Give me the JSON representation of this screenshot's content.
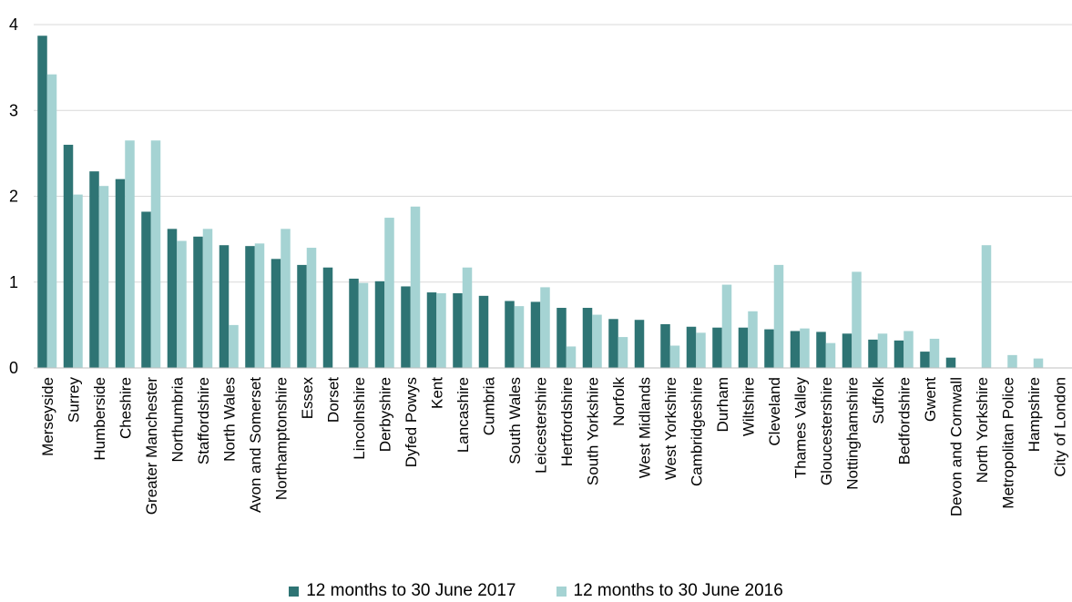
{
  "chart_data": {
    "type": "bar",
    "categories": [
      "Merseyside",
      "Surrey",
      "Humberside",
      "Cheshire",
      "Greater Manchester",
      "Northumbria",
      "Staffordshire",
      "North Wales",
      "Avon and Somerset",
      "Northamptonshire",
      "Essex",
      "Dorset",
      "Lincolnshire",
      "Derbyshire",
      "Dyfed Powys",
      "Kent",
      "Lancashire",
      "Cumbria",
      "South Wales",
      "Leicestershire",
      "Hertfordshire",
      "South Yorkshire",
      "Norfolk",
      "West Midlands",
      "West Yorkshire",
      "Cambridgeshire",
      "Durham",
      "Wiltshire",
      "Cleveland",
      "Thames Valley",
      "Gloucestershire",
      "Nottinghamshire",
      "Suffolk",
      "Bedfordshire",
      "Gwent",
      "Devon and Cornwall",
      "North Yorkshire",
      "Metropolitan Police",
      "Hampshire",
      "City of London"
    ],
    "series": [
      {
        "name": "12 months to 30 June 2017",
        "color": "#2e7474",
        "values": [
          3.87,
          2.6,
          2.29,
          2.2,
          1.82,
          1.62,
          1.53,
          1.43,
          1.42,
          1.27,
          1.2,
          1.17,
          1.04,
          1.01,
          0.95,
          0.88,
          0.87,
          0.84,
          0.78,
          0.77,
          0.7,
          0.7,
          0.57,
          0.56,
          0.51,
          0.48,
          0.47,
          0.47,
          0.45,
          0.43,
          0.42,
          0.4,
          0.33,
          0.32,
          0.19,
          0.12,
          0,
          0,
          0,
          0
        ]
      },
      {
        "name": "12 months to 30 June 2016",
        "color": "#a5d3d3",
        "values": [
          3.42,
          2.02,
          2.12,
          2.65,
          2.65,
          1.48,
          1.62,
          0.5,
          1.45,
          1.62,
          1.4,
          0,
          0.99,
          1.75,
          1.88,
          0.87,
          1.17,
          0,
          0.72,
          0.94,
          0.25,
          0.62,
          0.36,
          0,
          0.26,
          0.41,
          0.97,
          0.66,
          1.2,
          0.46,
          0.29,
          1.12,
          0.4,
          0.43,
          0.34,
          0,
          1.43,
          0.15,
          0.11,
          0
        ]
      }
    ],
    "y_ticks": [
      "0",
      "1",
      "2",
      "3",
      "4"
    ],
    "ylim": [
      0,
      4
    ],
    "grid": true,
    "legend_position": "bottom-center"
  }
}
